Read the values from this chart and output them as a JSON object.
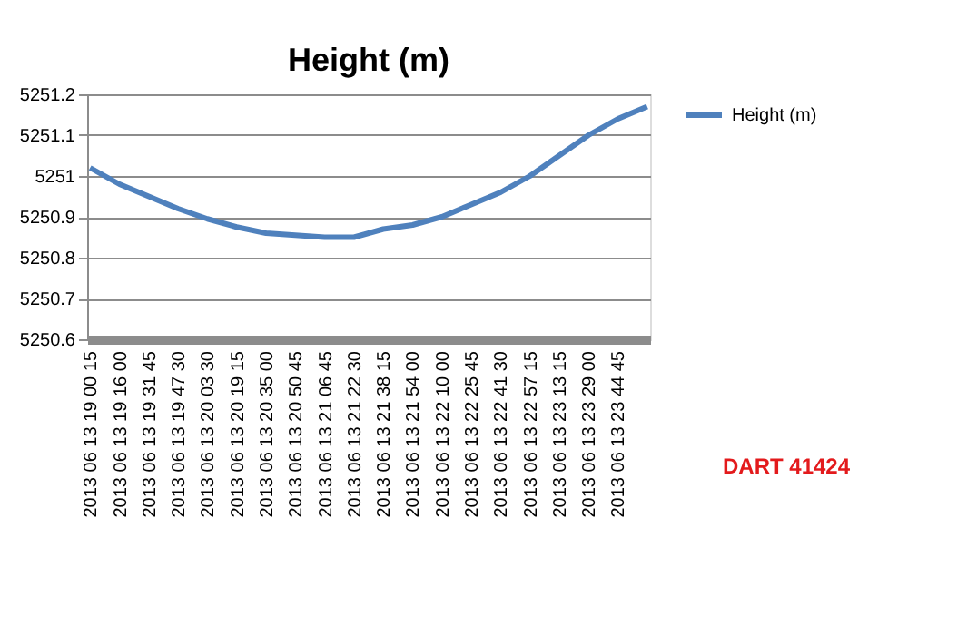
{
  "chart_data": {
    "type": "line",
    "title": "Height (m)",
    "categories": [
      "2013 06 13 19 00 15",
      "2013 06 13 19 16 00",
      "2013 06 13 19 31 45",
      "2013 06 13 19 47 30",
      "2013 06 13 20 03 30",
      "2013 06 13 20 19 15",
      "2013 06 13 20 35 00",
      "2013 06 13 20 50 45",
      "2013 06 13 21 06 45",
      "2013 06 13 21 22 30",
      "2013 06 13 21 38 15",
      "2013 06 13 21 54 00",
      "2013 06 13 22 10 00",
      "2013 06 13 22 25 45",
      "2013 06 13 22 41 30",
      "2013 06 13 22 57 15",
      "2013 06 13 23 13 15",
      "2013 06 13 23 29 00",
      "2013 06 13 23 44 45",
      null
    ],
    "series": [
      {
        "name": "Height (m)",
        "color": "#4f81bd",
        "values": [
          5251.02,
          5250.98,
          5250.95,
          5250.92,
          5250.895,
          5250.875,
          5250.86,
          5250.855,
          5250.85,
          5250.85,
          5250.87,
          5250.88,
          5250.9,
          5250.93,
          5250.96,
          5251.0,
          5251.05,
          5251.1,
          5251.14,
          5251.17
        ]
      }
    ],
    "ylim": [
      5250.6,
      5251.2
    ],
    "yticks": [
      5250.6,
      5250.7,
      5250.8,
      5250.9,
      5251,
      5251.1,
      5251.2
    ],
    "grid": "y",
    "legend": "right",
    "marker": "none",
    "line_style": "solid",
    "annotations": [
      "DART 41424"
    ]
  }
}
